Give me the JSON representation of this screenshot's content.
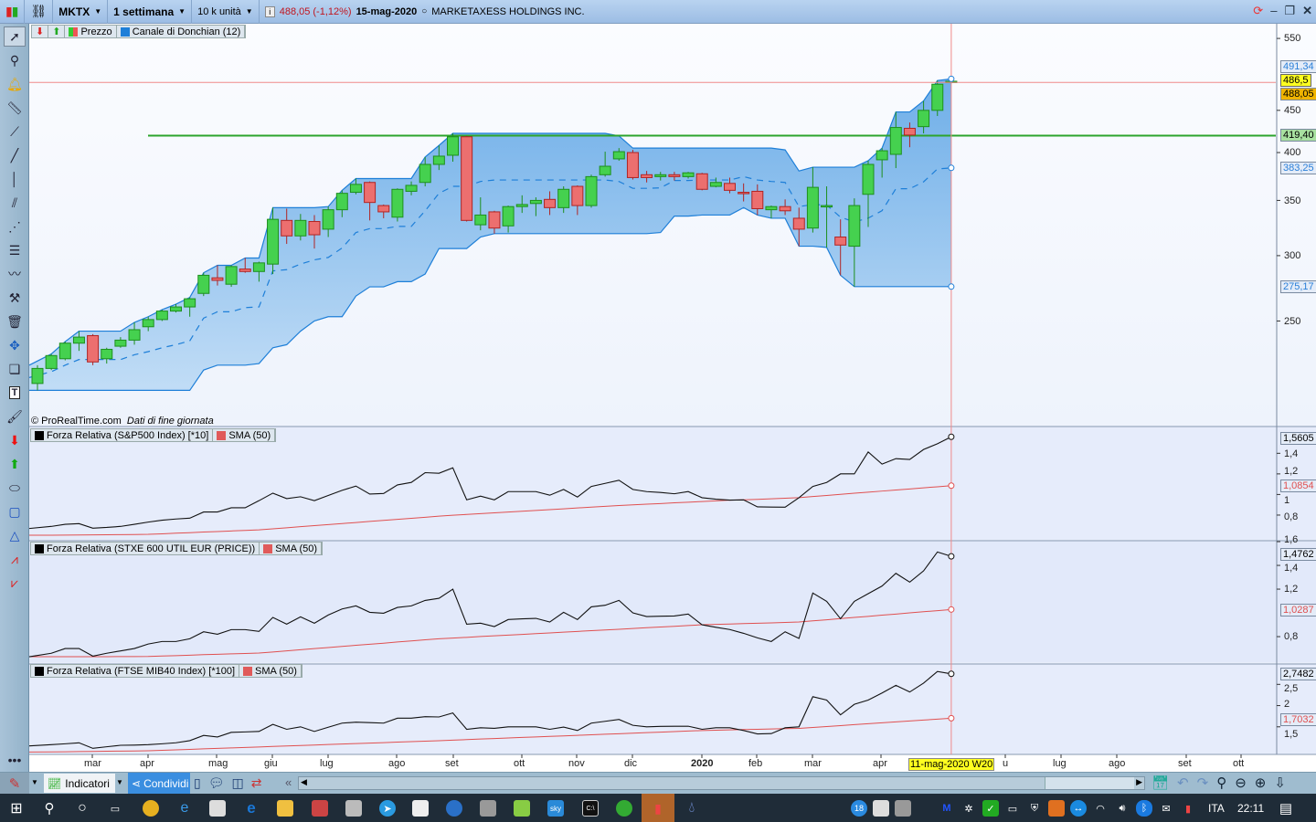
{
  "titlebar": {
    "symbol": "MKTX",
    "timeframe": "1 settimana",
    "units": "10 k unità",
    "last_price": "488,05",
    "change": "(-1,12%)",
    "date": "15-mag-2020",
    "company": "MARKETAXESS HOLDINGS INC.",
    "price_color": "#c0141e"
  },
  "legend_main": {
    "price": "Prezzo",
    "donchian": "Canale di Donchian (12)"
  },
  "watermark": {
    "source": "© ProRealTime.com",
    "note": "Dati di fine giornata"
  },
  "panels": [
    {
      "title": "Forza Relativa (S&P500 Index) [*10]",
      "sma": "SMA (50)",
      "last": "1,5605",
      "sma_last": "1,0854",
      "ticks": [
        "1,4",
        "1,2",
        "1",
        "0,8"
      ]
    },
    {
      "title": "Forza Relativa (STXE 600 UTIL EUR (PRICE))",
      "sma": "SMA (50)",
      "last": "1,4762",
      "sma_last": "1,0287",
      "ticks": [
        "1,6",
        "1,4",
        "1,2",
        "0,8"
      ]
    },
    {
      "title": "Forza Relativa (FTSE MIB40 Index) [*100]",
      "sma": "SMA (50)",
      "last": "2,7482",
      "sma_last": "1,7032",
      "ticks": [
        "2,5",
        "2",
        "1,5"
      ]
    }
  ],
  "price_axis": {
    "ticks": [
      "550",
      "450",
      "400",
      "350",
      "300",
      "250"
    ],
    "labels": {
      "donchian_upper": "491,34",
      "cursor": "486,5",
      "last": "488,05",
      "level": "419,40",
      "donchian_mid": "383,25",
      "donchian_lower": "275,17"
    }
  },
  "x_axis": {
    "labels": [
      "mar",
      "apr",
      "mag",
      "giu",
      "lug",
      "ago",
      "set",
      "ott",
      "nov",
      "dic",
      "2020",
      "feb",
      "mar",
      "apr",
      "u",
      "lug",
      "ago",
      "set",
      "ott"
    ],
    "cursor": "11-mag-2020 W20"
  },
  "bottombar": {
    "indicators": "Indicatori",
    "share": "Condividi"
  },
  "taskbar": {
    "lang": "ITA",
    "time": "22:11",
    "badge": "18"
  },
  "colors": {
    "up": "#45d14f",
    "down": "#ec6f6f",
    "channel": "#1e7fd8",
    "level": "#2ca42c",
    "crosshair": "#f08a8a",
    "sma": "#e05050"
  },
  "chart_data": {
    "type": "candlestick",
    "price_scale": "log",
    "ylim": [
      186.7,
      573
    ],
    "donchian_period": 12,
    "horizontal_level": 419.4,
    "cursor_price": 486.5,
    "ohlc": [
      [
        210,
        221,
        206,
        219
      ],
      [
        219,
        228,
        218,
        227
      ],
      [
        225,
        236,
        224,
        235
      ],
      [
        235,
        243,
        230,
        239
      ],
      [
        240,
        241,
        221,
        223
      ],
      [
        225,
        232,
        222,
        231
      ],
      [
        233,
        239,
        232,
        237
      ],
      [
        237,
        249,
        234,
        244
      ],
      [
        246,
        253,
        243,
        251
      ],
      [
        251,
        258,
        250,
        257
      ],
      [
        257,
        262,
        256,
        260
      ],
      [
        260,
        267,
        253,
        266
      ],
      [
        270,
        286,
        268,
        284
      ],
      [
        282,
        292,
        276,
        280
      ],
      [
        277,
        292,
        275,
        291
      ],
      [
        289,
        298,
        286,
        287
      ],
      [
        287,
        295,
        279,
        294
      ],
      [
        293,
        343,
        285,
        332
      ],
      [
        331,
        342,
        310,
        317
      ],
      [
        317,
        337,
        313,
        331
      ],
      [
        330,
        336,
        306,
        318
      ],
      [
        323,
        344,
        316,
        341
      ],
      [
        341,
        360,
        334,
        357
      ],
      [
        358,
        372,
        356,
        366
      ],
      [
        368,
        369,
        331,
        348
      ],
      [
        345,
        346,
        333,
        339
      ],
      [
        334,
        362,
        330,
        361
      ],
      [
        359,
        369,
        355,
        365
      ],
      [
        368,
        395,
        364,
        387
      ],
      [
        387,
        408,
        381,
        396
      ],
      [
        397,
        422,
        390,
        418
      ],
      [
        418,
        419,
        330,
        331
      ],
      [
        327,
        353,
        322,
        336
      ],
      [
        339,
        340,
        319,
        324
      ],
      [
        326,
        345,
        320,
        344
      ],
      [
        344,
        355,
        338,
        346
      ],
      [
        347,
        353,
        335,
        350
      ],
      [
        351,
        359,
        336,
        343
      ],
      [
        343,
        364,
        338,
        361
      ],
      [
        364,
        365,
        336,
        345
      ],
      [
        345,
        376,
        343,
        374
      ],
      [
        376,
        401,
        374,
        385
      ],
      [
        393,
        405,
        391,
        401
      ],
      [
        400,
        403,
        371,
        373
      ],
      [
        376,
        380,
        368,
        373
      ],
      [
        374,
        379,
        370,
        376
      ],
      [
        376,
        379,
        370,
        374
      ],
      [
        374,
        379,
        372,
        378
      ],
      [
        377,
        378,
        360,
        361
      ],
      [
        364,
        373,
        363,
        368
      ],
      [
        367,
        373,
        357,
        360
      ],
      [
        358,
        367,
        349,
        357
      ],
      [
        359,
        366,
        336,
        342
      ],
      [
        341,
        345,
        333,
        344
      ],
      [
        344,
        351,
        336,
        340
      ],
      [
        333,
        343,
        308,
        323
      ],
      [
        324,
        384,
        320,
        363
      ],
      [
        344,
        364,
        307,
        345
      ],
      [
        316,
        332,
        284,
        309
      ],
      [
        308,
        352,
        275.17,
        345
      ],
      [
        356,
        391,
        325,
        387
      ],
      [
        392,
        405,
        373,
        402
      ],
      [
        398,
        448,
        383,
        429
      ],
      [
        428,
        435,
        406,
        420
      ],
      [
        430,
        462,
        422,
        450
      ],
      [
        450,
        489,
        443,
        484
      ],
      [
        487,
        491.34,
        485,
        488.05
      ]
    ],
    "indicators": [
      {
        "ylim": [
          0.569,
          1.66
        ],
        "values": [
          0.67,
          0.69,
          0.71,
          0.717,
          0.673,
          0.68,
          0.69,
          0.71,
          0.732,
          0.75,
          0.762,
          0.77,
          0.83,
          0.83,
          0.871,
          0.871,
          0.94,
          1.013,
          0.96,
          0.978,
          0.94,
          0.99,
          1.04,
          1.082,
          1.004,
          1.01,
          1.093,
          1.117,
          1.212,
          1.206,
          1.259,
          0.948,
          0.984,
          0.948,
          1.028,
          1.028,
          1.028,
          0.993,
          1.049,
          0.975,
          1.078,
          1.108,
          1.138,
          1.049,
          1.028,
          1.02,
          1.007,
          1.028,
          0.969,
          0.954,
          0.945,
          0.948,
          0.88,
          0.878,
          0.877,
          0.969,
          1.078,
          1.117,
          1.2,
          1.2,
          1.413,
          1.295,
          1.348,
          1.34,
          1.437,
          1.493,
          1.5605
        ],
        "sma": [
          0.604,
          0.605,
          0.606,
          0.607,
          0.608,
          0.609,
          0.61,
          0.611,
          0.613,
          0.618,
          0.624,
          0.629,
          0.635,
          0.64,
          0.646,
          0.651,
          0.657,
          0.667,
          0.677,
          0.688,
          0.698,
          0.708,
          0.718,
          0.728,
          0.739,
          0.749,
          0.759,
          0.769,
          0.779,
          0.79,
          0.798,
          0.806,
          0.814,
          0.822,
          0.83,
          0.837,
          0.845,
          0.853,
          0.861,
          0.869,
          0.877,
          0.885,
          0.893,
          0.899,
          0.906,
          0.912,
          0.919,
          0.925,
          0.932,
          0.938,
          0.945,
          0.948,
          0.953,
          0.958,
          0.964,
          0.969,
          0.98,
          0.99,
          1.001,
          1.012,
          1.022,
          1.033,
          1.043,
          1.054,
          1.065,
          1.075,
          1.0854
        ]
      },
      {
        "ylim": [
          0.585,
          1.608
        ],
        "values": [
          0.631,
          0.66,
          0.7,
          0.7,
          0.636,
          0.66,
          0.68,
          0.7,
          0.738,
          0.759,
          0.759,
          0.782,
          0.841,
          0.82,
          0.859,
          0.859,
          0.844,
          0.962,
          0.905,
          0.967,
          0.913,
          0.982,
          1.033,
          1.059,
          1.005,
          0.997,
          1.046,
          1.059,
          1.105,
          1.123,
          1.2,
          0.905,
          0.913,
          0.885,
          0.944,
          0.95,
          0.954,
          0.923,
          1.005,
          0.944,
          1.051,
          1.064,
          1.105,
          1.0,
          0.969,
          0.972,
          0.974,
          0.99,
          0.9,
          0.879,
          0.86,
          0.828,
          0.79,
          0.759,
          0.841,
          0.785,
          1.167,
          1.097,
          0.951,
          1.097,
          1.162,
          1.226,
          1.333,
          1.259,
          1.354,
          1.513,
          1.4762
        ],
        "sma": [
          0.631,
          0.631,
          0.631,
          0.631,
          0.631,
          0.631,
          0.632,
          0.632,
          0.633,
          0.637,
          0.64,
          0.644,
          0.648,
          0.651,
          0.655,
          0.658,
          0.662,
          0.671,
          0.68,
          0.69,
          0.699,
          0.708,
          0.718,
          0.727,
          0.736,
          0.745,
          0.755,
          0.764,
          0.773,
          0.782,
          0.788,
          0.794,
          0.801,
          0.807,
          0.813,
          0.819,
          0.825,
          0.831,
          0.838,
          0.844,
          0.85,
          0.856,
          0.862,
          0.869,
          0.875,
          0.881,
          0.887,
          0.894,
          0.9,
          0.903,
          0.906,
          0.91,
          0.913,
          0.916,
          0.92,
          0.923,
          0.933,
          0.942,
          0.952,
          0.962,
          0.971,
          0.981,
          0.99,
          1.0,
          1.01,
          1.019,
          1.0287
        ]
      },
      {
        "ylim": [
          0.85,
          2.98
        ],
        "values": [
          1.05,
          1.08,
          1.1,
          1.124,
          0.993,
          1.03,
          1.065,
          1.07,
          1.08,
          1.1,
          1.124,
          1.174,
          1.297,
          1.26,
          1.37,
          1.38,
          1.391,
          1.558,
          1.442,
          1.5,
          1.391,
          1.49,
          1.587,
          1.609,
          1.6,
          1.587,
          1.703,
          1.703,
          1.739,
          1.732,
          1.826,
          1.442,
          1.478,
          1.464,
          1.5,
          1.5,
          1.5,
          1.442,
          1.493,
          1.413,
          1.587,
          1.63,
          1.674,
          1.536,
          1.5,
          1.51,
          1.514,
          1.514,
          1.442,
          1.478,
          1.478,
          1.413,
          1.333,
          1.34,
          1.478,
          1.5,
          2.21,
          2.13,
          1.783,
          2.03,
          2.13,
          2.297,
          2.478,
          2.32,
          2.529,
          2.804,
          2.7482
        ],
        "sma": [
          0.906,
          0.91,
          0.913,
          0.917,
          0.92,
          0.924,
          0.928,
          0.931,
          0.935,
          0.946,
          0.958,
          0.969,
          0.981,
          0.992,
          1.003,
          1.015,
          1.026,
          1.037,
          1.049,
          1.06,
          1.071,
          1.083,
          1.094,
          1.106,
          1.117,
          1.128,
          1.14,
          1.151,
          1.162,
          1.174,
          1.187,
          1.199,
          1.212,
          1.224,
          1.237,
          1.25,
          1.262,
          1.275,
          1.287,
          1.3,
          1.313,
          1.325,
          1.338,
          1.35,
          1.363,
          1.375,
          1.388,
          1.4,
          1.413,
          1.42,
          1.428,
          1.435,
          1.442,
          1.45,
          1.457,
          1.464,
          1.486,
          1.507,
          1.529,
          1.551,
          1.573,
          1.594,
          1.616,
          1.638,
          1.66,
          1.681,
          1.7032
        ]
      }
    ]
  }
}
